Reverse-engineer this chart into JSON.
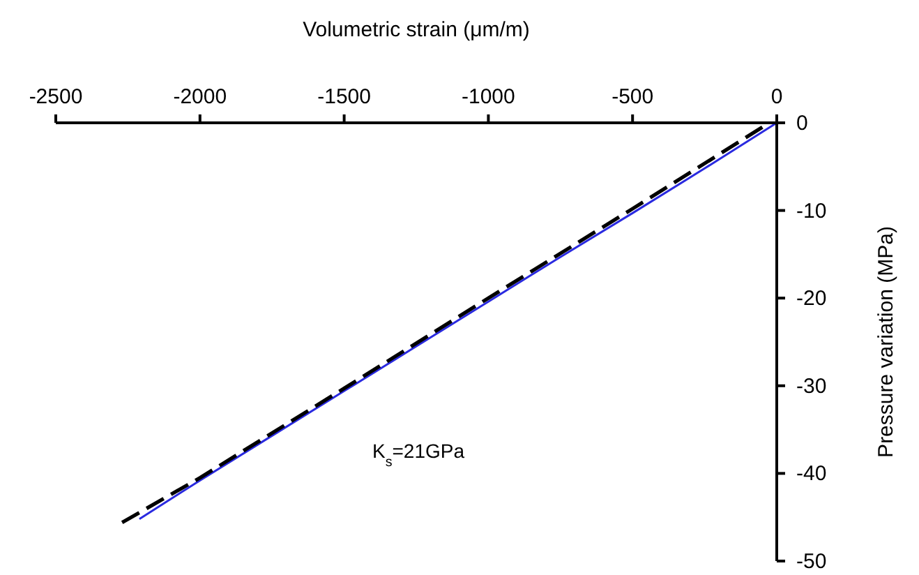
{
  "chart_data": {
    "type": "line",
    "xlabel": "Volumetric strain (μm/m)",
    "ylabel": "Pressure variation (MPa)",
    "xlim": [
      -2500,
      0
    ],
    "xticks": [
      -2500,
      -2000,
      -1500,
      -1000,
      -500,
      0
    ],
    "ylim": [
      -50,
      0
    ],
    "yticks": [
      -50,
      -40,
      -30,
      -20,
      -10,
      0
    ],
    "marker": "none",
    "annotations": [
      "K$_{s}$=21GPa"
    ],
    "series": [
      {
        "color": "#2a2ae0",
        "line_style": "solid",
        "x": [
          0,
          -250,
          -500,
          -750,
          -1000,
          -1250,
          -1500,
          -1750,
          -2000,
          -2210
        ],
        "values": [
          0,
          -5.2,
          -10.3,
          -15.3,
          -20.4,
          -25.5,
          -30.6,
          -35.7,
          -40.8,
          -45.2
        ]
      },
      {
        "color": "#000000",
        "line_style": "dashed",
        "x": [
          -50,
          -500,
          -1000,
          -1500,
          -2000,
          -2270
        ],
        "values": [
          -0.5,
          -9.8,
          -20.0,
          -30.3,
          -40.5,
          -45.6
        ]
      }
    ]
  }
}
